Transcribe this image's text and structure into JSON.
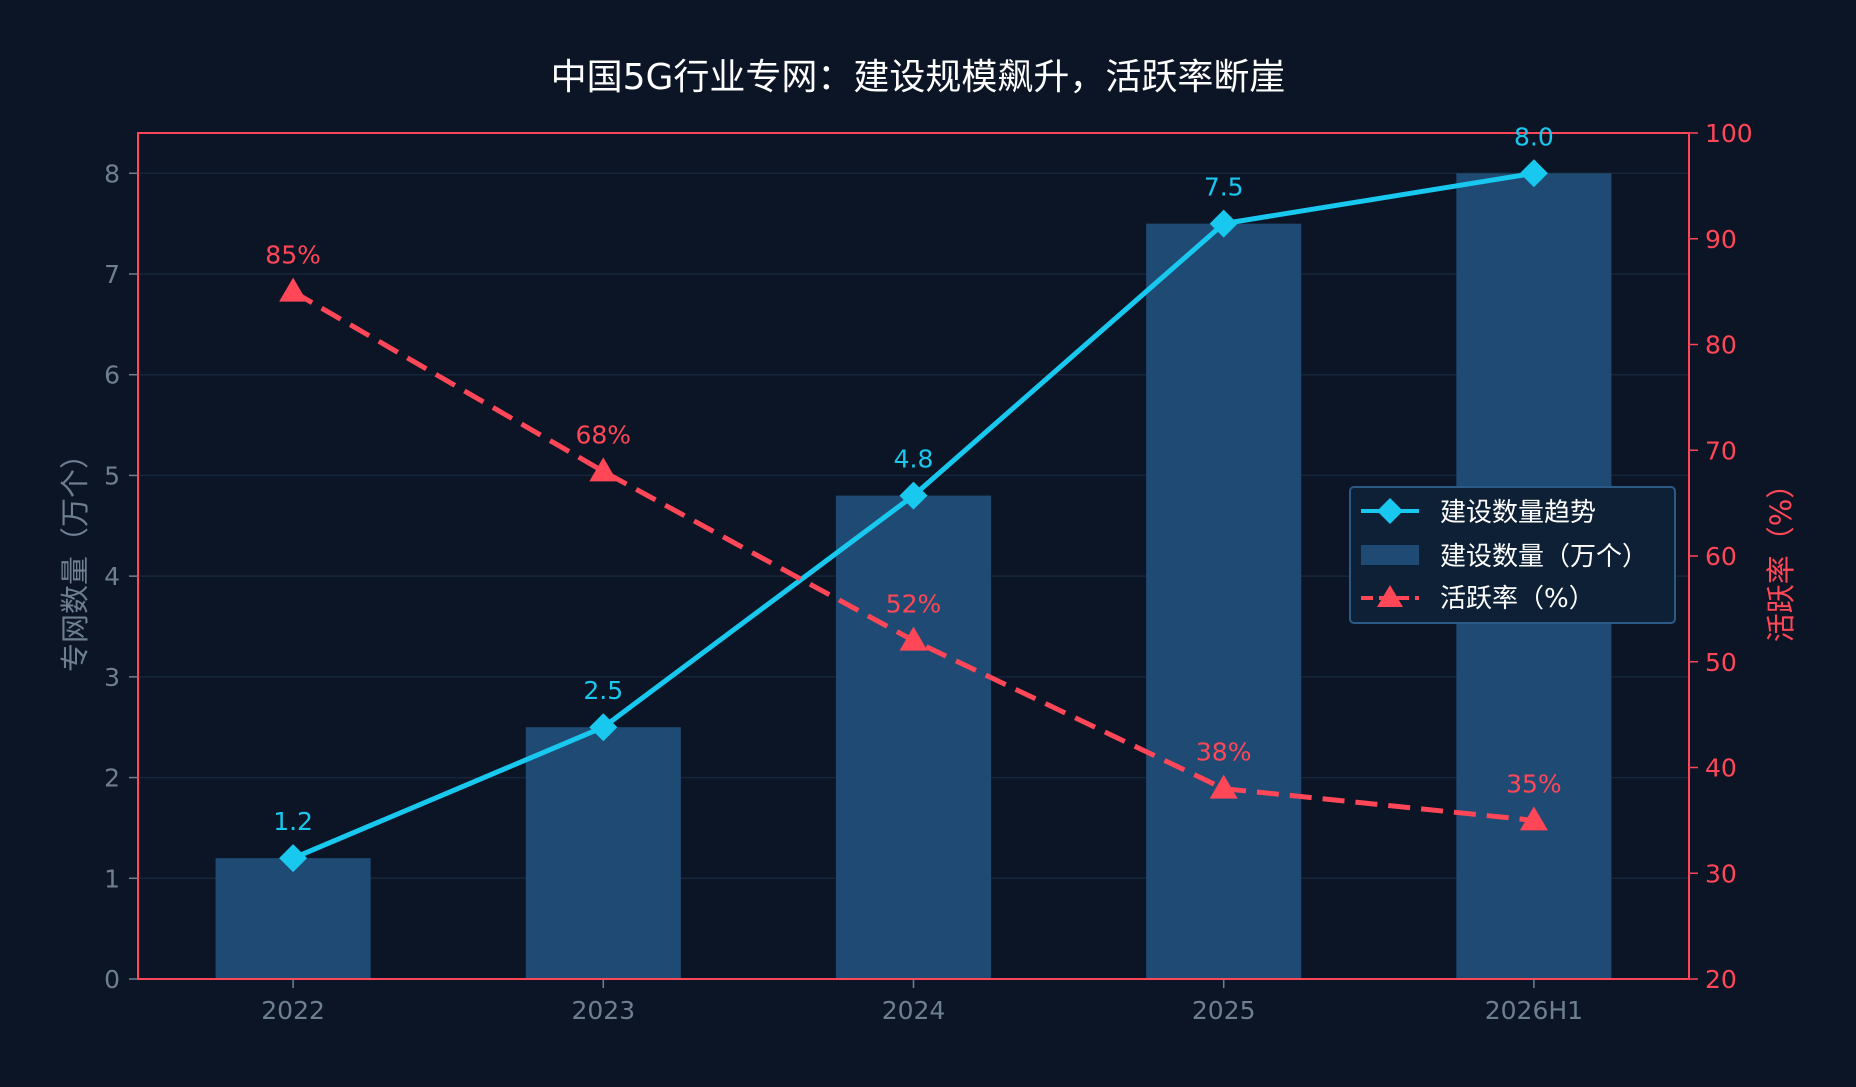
{
  "chart_data": {
    "type": "bar",
    "title": "中国5G行业专网：建设规模飙升，活跃率断崖",
    "categories": [
      "2022",
      "2023",
      "2024",
      "2025",
      "2026H1"
    ],
    "ylabel_left": "专网数量（万个）",
    "ylabel_right": "活跃率（%）",
    "ylim_left": [
      0,
      8.4
    ],
    "ylim_right": [
      20,
      100
    ],
    "yticks_left": [
      0,
      1,
      2,
      3,
      4,
      5,
      6,
      7,
      8
    ],
    "yticks_right": [
      20,
      30,
      40,
      50,
      60,
      70,
      80,
      90,
      100
    ],
    "grid": true,
    "legend_position": "center-right",
    "series": [
      {
        "name": "建设数量（万个）",
        "kind": "bar",
        "axis": "left",
        "values": [
          1.2,
          2.5,
          4.8,
          7.5,
          8.0
        ],
        "color": "#1f4a73"
      },
      {
        "name": "建设数量趋势",
        "kind": "line",
        "axis": "left",
        "marker": "diamond",
        "values": [
          1.2,
          2.5,
          4.8,
          7.5,
          8.0
        ],
        "labels": [
          "1.2",
          "2.5",
          "4.8",
          "7.5",
          "8.0"
        ],
        "color": "#18c8ef"
      },
      {
        "name": "活跃率（%）",
        "kind": "line",
        "axis": "right",
        "marker": "triangle",
        "dashed": true,
        "values": [
          85,
          68,
          52,
          38,
          35
        ],
        "labels": [
          "85%",
          "68%",
          "52%",
          "38%",
          "35%"
        ],
        "color": "#ff4757"
      }
    ],
    "colors": {
      "background": "#0b1526",
      "grid": "#16263a",
      "left_axis_text": "#6f7f92",
      "right_axis": "#ff4757",
      "title": "#ffffff",
      "legend_bg": "#0e2036",
      "legend_border": "#2c5a86"
    }
  }
}
